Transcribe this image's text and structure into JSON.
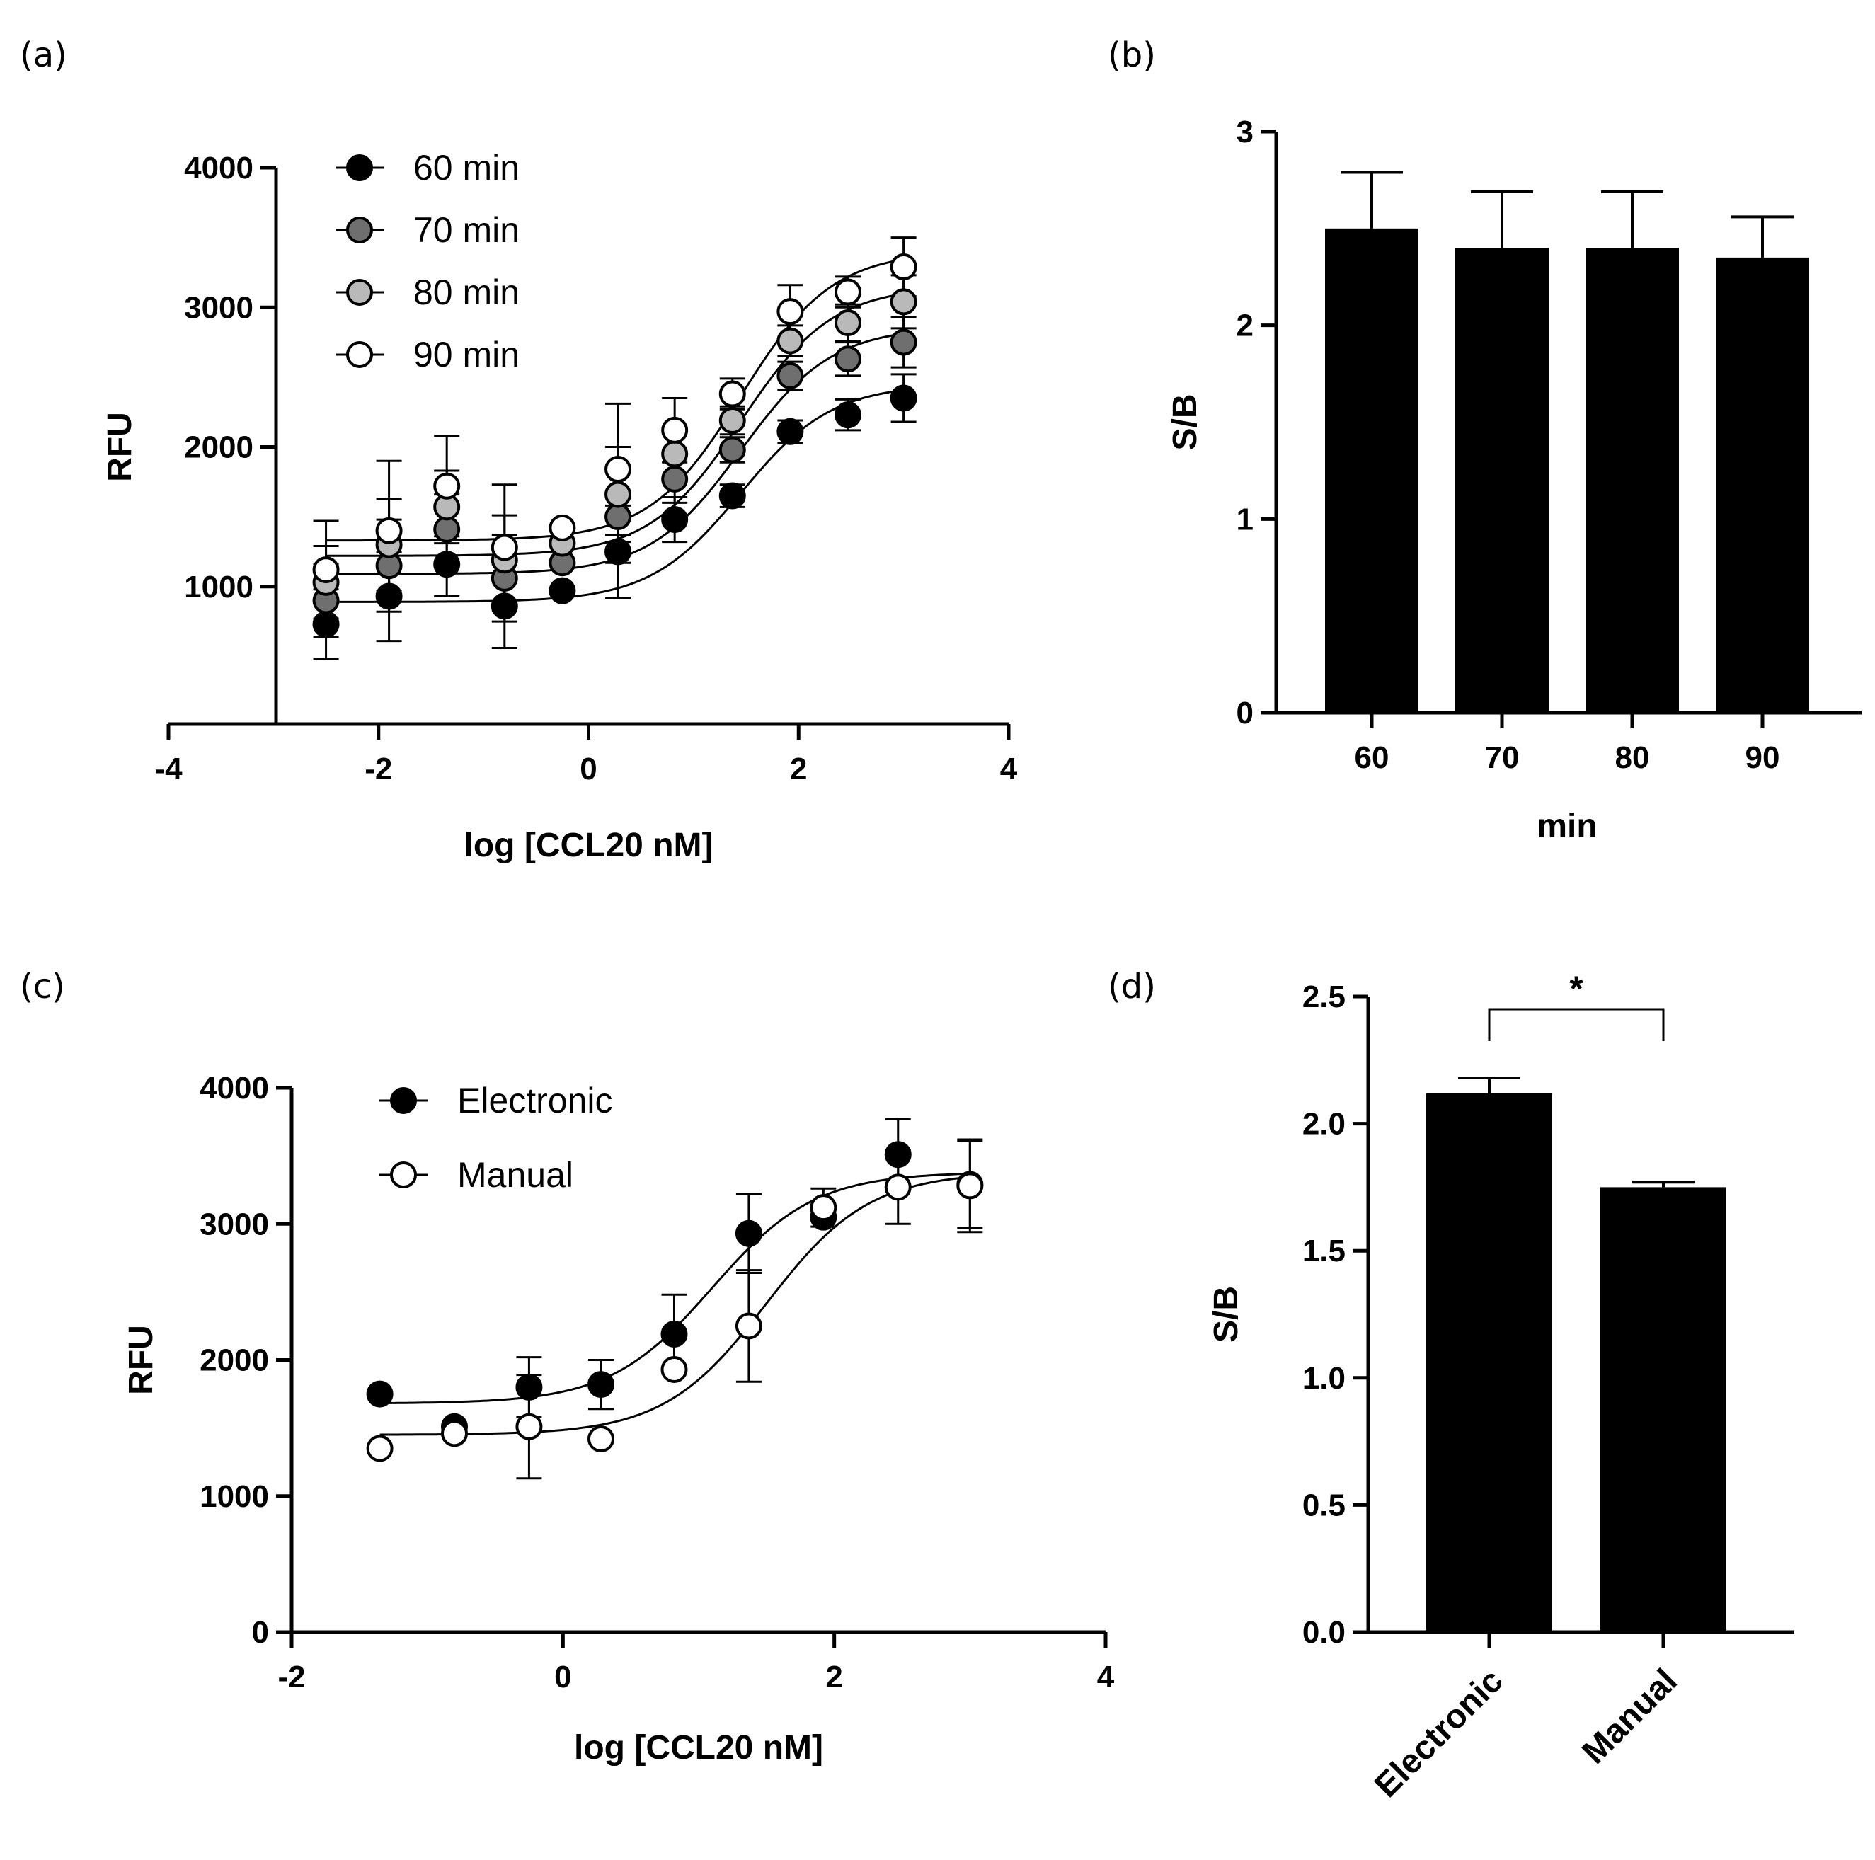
{
  "chart_data": [
    {
      "panel": "(a)",
      "type": "scatter",
      "xlabel": "log [CCL20 nM]",
      "ylabel": "RFU",
      "xlim": [
        -4,
        4
      ],
      "ylim": [
        0,
        4000
      ],
      "xticks": [
        -4,
        -2,
        0,
        2,
        4
      ],
      "yticks": [
        1000,
        2000,
        3000,
        4000
      ],
      "x": [
        -2.5,
        -1.9,
        -1.35,
        -0.8,
        -0.25,
        0.28,
        0.82,
        1.37,
        1.92,
        2.47,
        3.0
      ],
      "series": [
        {
          "name": "60 min",
          "fill": "#000000",
          "values": [
            730,
            930,
            1160,
            860,
            970,
            1250,
            1480,
            1650,
            2110,
            2230,
            2350
          ],
          "errors": [
            250,
            320,
            230,
            300,
            0,
            330,
            160,
            80,
            80,
            110,
            170
          ],
          "fit": {
            "bottom": 890,
            "top": 2450,
            "logec50": 1.45,
            "hill": 1.0
          }
        },
        {
          "name": "70 min",
          "fill": "#6f6f6f",
          "values": [
            900,
            1150,
            1410,
            1060,
            1170,
            1500,
            1770,
            1980,
            2510,
            2630,
            2750
          ],
          "errors": [
            260,
            330,
            250,
            310,
            0,
            330,
            170,
            90,
            100,
            120,
            180
          ],
          "fit": {
            "bottom": 1090,
            "top": 2860,
            "logec50": 1.45,
            "hill": 1.0
          }
        },
        {
          "name": "80 min",
          "fill": "#b9b9b9",
          "values": [
            1030,
            1300,
            1570,
            1190,
            1310,
            1660,
            1950,
            2190,
            2760,
            2890,
            3040
          ],
          "errors": [
            260,
            330,
            260,
            320,
            0,
            340,
            180,
            100,
            110,
            130,
            190
          ],
          "fit": {
            "bottom": 1220,
            "top": 3150,
            "logec50": 1.45,
            "hill": 1.0
          }
        },
        {
          "name": "90 min",
          "fill": "#ffffff",
          "values": [
            1120,
            1400,
            1720,
            1280,
            1420,
            1840,
            2120,
            2380,
            2970,
            3110,
            3290
          ],
          "errors": [
            350,
            500,
            360,
            450,
            0,
            470,
            230,
            110,
            190,
            110,
            210
          ],
          "fit": {
            "bottom": 1330,
            "top": 3400,
            "logec50": 1.45,
            "hill": 1.0
          }
        }
      ]
    },
    {
      "panel": "(b)",
      "type": "bar",
      "xlabel": "min",
      "ylabel": "S/B",
      "ylim": [
        0,
        3
      ],
      "yticks": [
        0,
        1,
        2,
        3
      ],
      "categories": [
        "60",
        "70",
        "80",
        "90"
      ],
      "values": [
        2.5,
        2.4,
        2.4,
        2.35
      ],
      "errors": [
        0.29,
        0.29,
        0.29,
        0.21
      ]
    },
    {
      "panel": "(c)",
      "type": "scatter",
      "xlabel": "log [CCL20 nM]",
      "ylabel": "RFU",
      "xlim": [
        -2,
        4
      ],
      "ylim": [
        0,
        4000
      ],
      "xticks": [
        -2,
        0,
        2,
        4
      ],
      "yticks": [
        0,
        1000,
        2000,
        3000,
        4000
      ],
      "x": [
        -1.35,
        -0.8,
        -0.25,
        0.28,
        0.82,
        1.37,
        1.92,
        2.47,
        3.0
      ],
      "series": [
        {
          "name": "Electronic",
          "fill": "#000000",
          "values": [
            1750,
            1510,
            1800,
            1820,
            2190,
            2930,
            3050,
            3510,
            3290
          ],
          "errors": [
            0,
            0,
            220,
            180,
            290,
            290,
            0,
            260,
            320
          ],
          "fit": {
            "bottom": 1680,
            "top": 3380,
            "logec50": 1.1,
            "hill": 1.15
          }
        },
        {
          "name": "Manual",
          "fill": "#ffffff",
          "values": [
            1350,
            1460,
            1510,
            1420,
            1930,
            2250,
            3120,
            3270,
            3280
          ],
          "errors": [
            0,
            0,
            380,
            0,
            0,
            410,
            140,
            270,
            340
          ],
          "fit": {
            "bottom": 1450,
            "top": 3380,
            "logec50": 1.5,
            "hill": 1.15
          }
        }
      ]
    },
    {
      "panel": "(d)",
      "type": "bar",
      "xlabel": "",
      "ylabel": "S/B",
      "ylim": [
        0,
        2.5
      ],
      "yticks": [
        "0.0",
        "0.5",
        "1.0",
        "1.5",
        "2.0",
        "2.5"
      ],
      "categories": [
        "Electronic",
        "Manual"
      ],
      "values": [
        2.12,
        1.75
      ],
      "errors": [
        0.06,
        0.02
      ],
      "significance": "*"
    }
  ]
}
